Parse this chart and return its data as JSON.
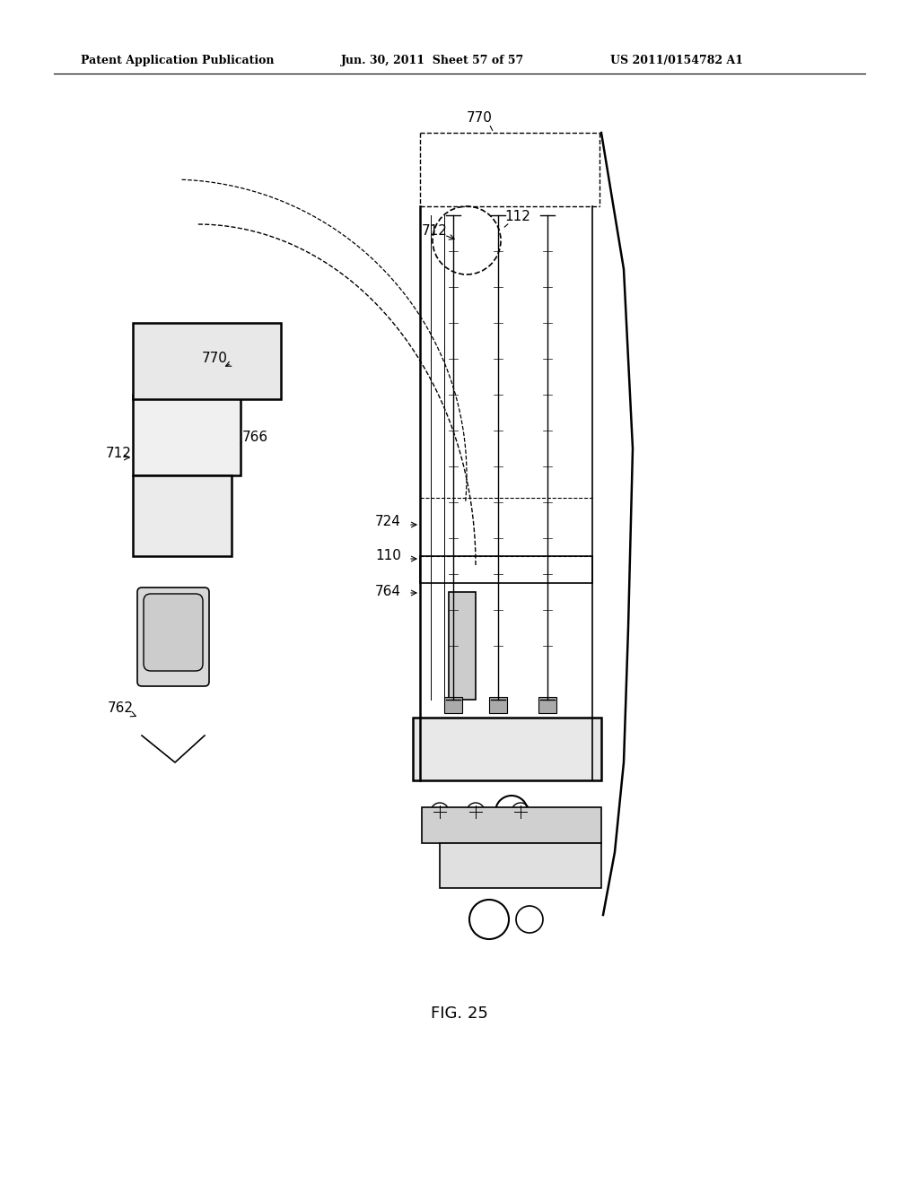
{
  "bg_color": "#ffffff",
  "line_color": "#000000",
  "header_text1": "Patent Application Publication",
  "header_text2": "Jun. 30, 2011  Sheet 57 of 57",
  "header_text3": "US 2011/0154782 A1",
  "fig_label": "FIG. 25",
  "labels": {
    "770_top": "770",
    "712_circle": "712",
    "112": "112",
    "770_left": "770",
    "712_left": "712",
    "766": "766",
    "724": "724",
    "110": "110",
    "764": "764",
    "762": "762"
  }
}
